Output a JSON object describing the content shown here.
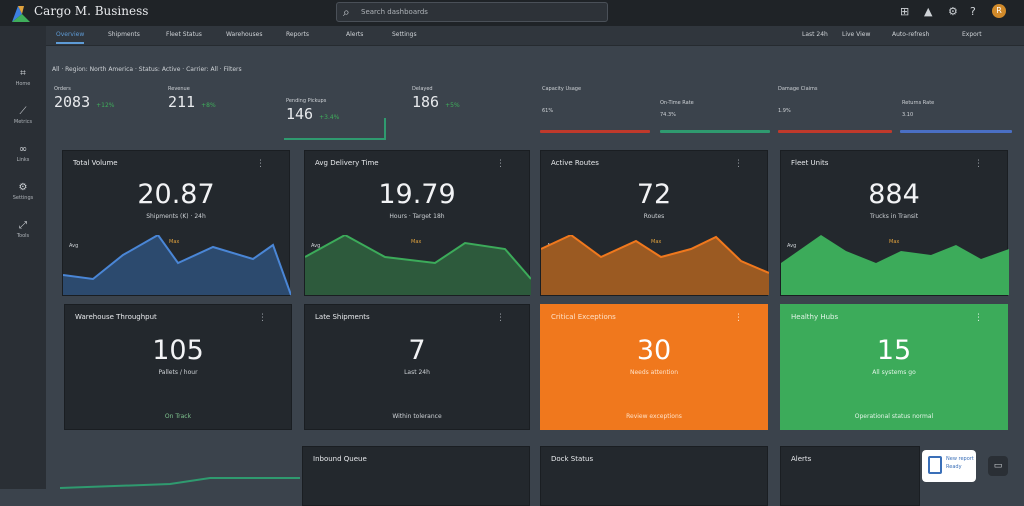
{
  "app": {
    "brand": "Cargo M. Business"
  },
  "search": {
    "placeholder": "Search dashboards"
  },
  "topbar_icons": [
    "apps-icon",
    "alert-icon",
    "settings-icon",
    "help-icon"
  ],
  "avatar_initial": "R",
  "sidebar": {
    "items": [
      {
        "icon": "grid-icon",
        "glyph": "⌗",
        "label": "Home"
      },
      {
        "icon": "chart-icon",
        "glyph": "⟋",
        "label": "Metrics"
      },
      {
        "icon": "link-icon",
        "glyph": "∞",
        "label": "Links"
      },
      {
        "icon": "settings-icon",
        "glyph": "⚙",
        "label": "Settings"
      },
      {
        "icon": "tool-icon",
        "glyph": "⤢",
        "label": "Tools"
      }
    ]
  },
  "tabs": {
    "items": [
      "Overview",
      "Shipments",
      "Fleet Status",
      "Warehouses",
      "Reports",
      "Alerts",
      "Settings"
    ],
    "right": [
      "Last 24h",
      "Live View",
      "Auto-refresh",
      "Export"
    ]
  },
  "filters": {
    "text": "All · Region: North America · Status: Active · Carrier: All · Filters"
  },
  "kpis": [
    {
      "label": "Orders",
      "value": "2083",
      "delta": "+12%"
    },
    {
      "label": "Revenue",
      "value": "211",
      "delta": "+8%"
    },
    {
      "label": "Pending Pickups",
      "value": "146",
      "delta": "+3.4%"
    },
    {
      "label": "Delayed",
      "value": "186",
      "delta": "+5%"
    },
    {
      "label": "Capacity Usage",
      "value": "61%",
      "delta": ""
    },
    {
      "label": "On-Time Rate",
      "value": "74.3%",
      "delta": ""
    },
    {
      "label": "Damage Claims",
      "value": "1.9%",
      "delta": ""
    },
    {
      "label": "Returns Rate",
      "value": "3.10",
      "delta": ""
    }
  ],
  "panels": [
    {
      "title": "Total Volume",
      "value": "20.87",
      "sub": "Shipments (K) · 24h",
      "axis_left": "Avg",
      "axis_mid": "Max",
      "footer": ""
    },
    {
      "title": "Avg Delivery Time",
      "value": "19.79",
      "sub": "Hours · Target 18h",
      "axis_left": "Avg",
      "axis_mid": "Max",
      "footer": ""
    },
    {
      "title": "Active Routes",
      "value": "72",
      "sub": "Routes",
      "axis_left": "Avg",
      "axis_mid": "Max",
      "footer": ""
    },
    {
      "title": "Fleet Units",
      "value": "884",
      "sub": "Trucks in Transit",
      "axis_left": "Avg",
      "axis_mid": "Max",
      "footer": ""
    },
    {
      "title": "Warehouse Throughput",
      "value": "105",
      "sub": "Pallets / hour",
      "axis_left": "",
      "axis_mid": "",
      "footer": "On Track"
    },
    {
      "title": "Late Shipments",
      "value": "7",
      "sub": "Last 24h",
      "axis_left": "",
      "axis_mid": "",
      "footer": "Within tolerance"
    },
    {
      "title": "Critical Exceptions",
      "value": "30",
      "sub": "Needs attention",
      "axis_left": "",
      "axis_mid": "",
      "footer": "Review exceptions"
    },
    {
      "title": "Healthy Hubs",
      "value": "15",
      "sub": "All systems go",
      "axis_left": "",
      "axis_mid": "",
      "footer": "Operational status normal"
    },
    {
      "title": "Inbound Queue",
      "value": "",
      "sub": "",
      "axis_left": "",
      "axis_mid": "",
      "footer": ""
    },
    {
      "title": "Dock Status",
      "value": "",
      "sub": "",
      "axis_left": "",
      "axis_mid": "",
      "footer": ""
    },
    {
      "title": "Alerts",
      "value": "",
      "sub": "",
      "axis_left": "",
      "axis_mid": "",
      "footer": ""
    }
  ],
  "float_card": {
    "line1": "New report",
    "line2": "Ready"
  },
  "colors": {
    "blue": "#4a86d6",
    "green": "#3cab5a",
    "orange": "#f0781d",
    "red": "#c0392b"
  }
}
